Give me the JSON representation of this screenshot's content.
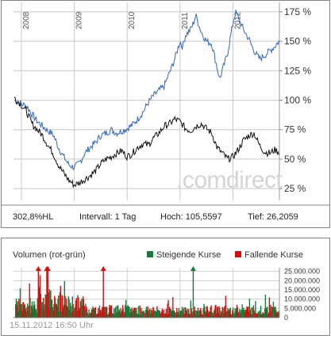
{
  "chart_data": [
    {
      "type": "line",
      "title": "",
      "x_axis_years": [
        "2008",
        "2009",
        "2010",
        "2011",
        "2012"
      ],
      "y_ticks": [
        "175 %",
        "150 %",
        "125 %",
        "100 %",
        "75 %",
        "50 %",
        "25 %"
      ],
      "y_tick_values": [
        175,
        150,
        125,
        100,
        75,
        50,
        25
      ],
      "ylim": [
        15,
        183
      ],
      "xlim": [
        2007.85,
        2012.88
      ],
      "grid": "vertical year lines and horizontal percent lines",
      "watermark": ".comdirect",
      "series": [
        {
          "color": "#3366bb",
          "x": [
            2007.87,
            2008.0,
            2008.1,
            2008.2,
            2008.3,
            2008.4,
            2008.5,
            2008.6,
            2008.7,
            2008.8,
            2008.9,
            2009.0,
            2009.1,
            2009.2,
            2009.3,
            2009.4,
            2009.5,
            2009.6,
            2009.7,
            2009.8,
            2009.9,
            2010.0,
            2010.1,
            2010.2,
            2010.3,
            2010.4,
            2010.5,
            2010.6,
            2010.7,
            2010.8,
            2010.9,
            2011.0,
            2011.05,
            2011.1,
            2011.2,
            2011.25,
            2011.3,
            2011.4,
            2011.5,
            2011.6,
            2011.7,
            2011.75,
            2011.8,
            2011.9,
            2012.0,
            2012.05,
            2012.1,
            2012.2,
            2012.3,
            2012.4,
            2012.5,
            2012.6,
            2012.7,
            2012.8,
            2012.87
          ],
          "values": [
            100,
            97,
            95,
            88,
            82,
            78,
            74,
            71,
            60,
            52,
            45,
            43,
            47,
            55,
            60,
            64,
            70,
            72,
            75,
            72,
            74,
            76,
            79,
            84,
            90,
            98,
            104,
            108,
            112,
            123,
            135,
            150,
            145,
            155,
            160,
            165,
            172,
            158,
            150,
            148,
            128,
            118,
            125,
            140,
            165,
            175,
            170,
            160,
            152,
            142,
            135,
            138,
            142,
            146,
            150
          ]
        },
        {
          "color": "#111111",
          "x": [
            2007.87,
            2008.0,
            2008.1,
            2008.2,
            2008.3,
            2008.4,
            2008.5,
            2008.6,
            2008.7,
            2008.8,
            2008.9,
            2009.0,
            2009.1,
            2009.2,
            2009.3,
            2009.4,
            2009.5,
            2009.6,
            2009.7,
            2009.8,
            2009.9,
            2010.0,
            2010.1,
            2010.2,
            2010.3,
            2010.4,
            2010.5,
            2010.6,
            2010.7,
            2010.8,
            2010.9,
            2011.0,
            2011.1,
            2011.2,
            2011.3,
            2011.4,
            2011.5,
            2011.6,
            2011.7,
            2011.8,
            2011.9,
            2012.0,
            2012.1,
            2012.2,
            2012.3,
            2012.4,
            2012.5,
            2012.6,
            2012.7,
            2012.8,
            2012.87
          ],
          "values": [
            102,
            96,
            90,
            80,
            75,
            70,
            62,
            55,
            45,
            38,
            32,
            28,
            30,
            33,
            36,
            40,
            46,
            50,
            52,
            55,
            57,
            52,
            55,
            60,
            63,
            62,
            68,
            72,
            78,
            80,
            84,
            82,
            76,
            74,
            78,
            80,
            76,
            72,
            60,
            55,
            50,
            52,
            58,
            66,
            70,
            72,
            62,
            56,
            55,
            58,
            56
          ]
        }
      ]
    },
    {
      "type": "bar",
      "title": "Volumen (rot-grün)",
      "legend": [
        {
          "label": "Steigende Kurse",
          "color": "#1a7a3a"
        },
        {
          "label": "Fallende Kurse",
          "color": "#cc1111"
        }
      ],
      "legend_placement": "top-right",
      "y_ticks": [
        "25.000.000",
        "20.000.000",
        "15.000.000",
        "10.000.000",
        "5.000.000",
        "0"
      ],
      "y_tick_values": [
        25000000,
        20000000,
        15000000,
        10000000,
        5000000,
        0
      ],
      "ylim": [
        0,
        27000000
      ],
      "xlim": [
        2007.85,
        2012.88
      ],
      "overflow_markers": [
        {
          "x": 2008.32,
          "color": "red"
        },
        {
          "x": 2008.48,
          "color": "red"
        },
        {
          "x": 2008.5,
          "color": "red"
        },
        {
          "x": 2009.55,
          "color": "red"
        },
        {
          "x": 2011.25,
          "color": "green"
        }
      ],
      "bar_groups": [
        {
          "x_start": 2007.87,
          "x_end": 2008.3,
          "typical_volume": 7000000
        },
        {
          "x_start": 2008.3,
          "x_end": 2008.6,
          "typical_volume": 11000000
        },
        {
          "x_start": 2008.6,
          "x_end": 2009.2,
          "typical_volume": 8000000
        },
        {
          "x_start": 2009.2,
          "x_end": 2010.5,
          "typical_volume": 4500000
        },
        {
          "x_start": 2010.5,
          "x_end": 2011.5,
          "typical_volume": 4000000
        },
        {
          "x_start": 2011.5,
          "x_end": 2012.87,
          "typical_volume": 4500000
        }
      ]
    }
  ],
  "stats": {
    "performance": "302,8%HL",
    "interval": "Intervall: 1 Tag",
    "high": "Hoch: 105,5597",
    "low": "Tief: 26,2059"
  },
  "timestamp": "15.11.2012 16:50 Uhr"
}
